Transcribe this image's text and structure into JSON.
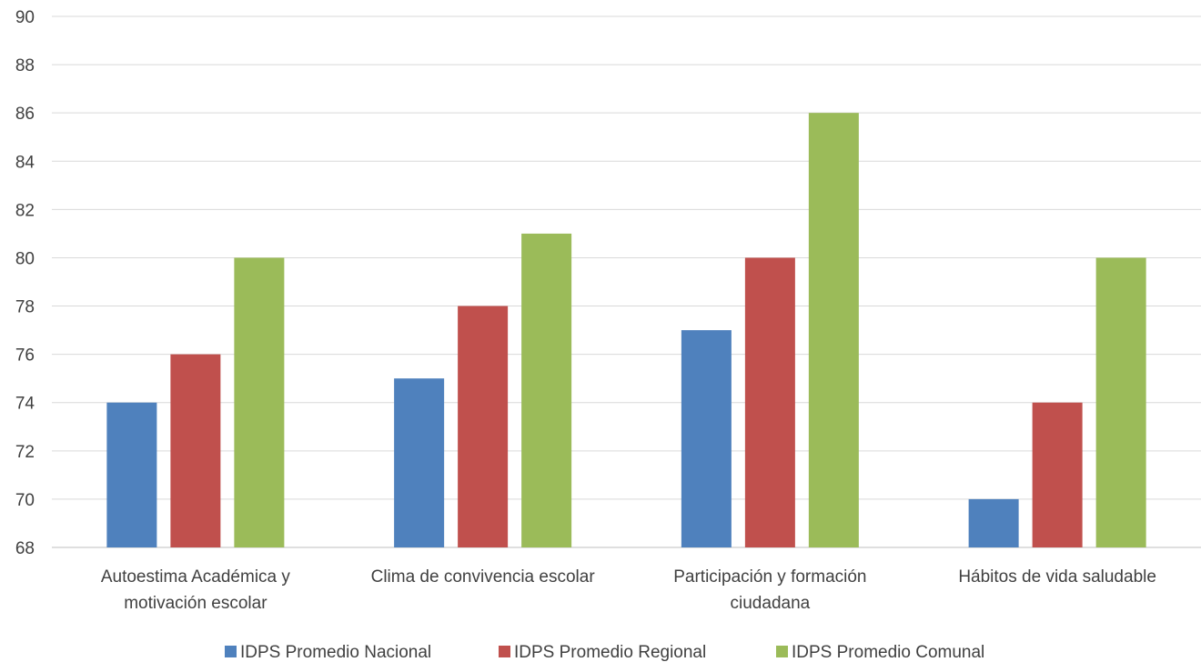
{
  "chart_data": {
    "type": "bar",
    "title": "",
    "xlabel": "",
    "ylabel": "",
    "ylim": [
      68,
      90
    ],
    "yticks": [
      68,
      70,
      72,
      74,
      76,
      78,
      80,
      82,
      84,
      86,
      88,
      90
    ],
    "grid": true,
    "legend_position": "bottom",
    "categories": [
      [
        "Autoestima Académica y",
        "motivación escolar"
      ],
      [
        "Clima de convivencia escolar"
      ],
      [
        "Participación y formación",
        "ciudadana"
      ],
      [
        "Hábitos de vida saludable"
      ]
    ],
    "series": [
      {
        "name": "IDPS Promedio Nacional",
        "color": "#4f81bd",
        "values": [
          74,
          75,
          77,
          70
        ]
      },
      {
        "name": "IDPS Promedio Regional",
        "color": "#c0504d",
        "values": [
          76,
          78,
          80,
          74
        ]
      },
      {
        "name": "IDPS Promedio Comunal",
        "color": "#9bbb59",
        "values": [
          80,
          81,
          86,
          80
        ]
      }
    ]
  }
}
